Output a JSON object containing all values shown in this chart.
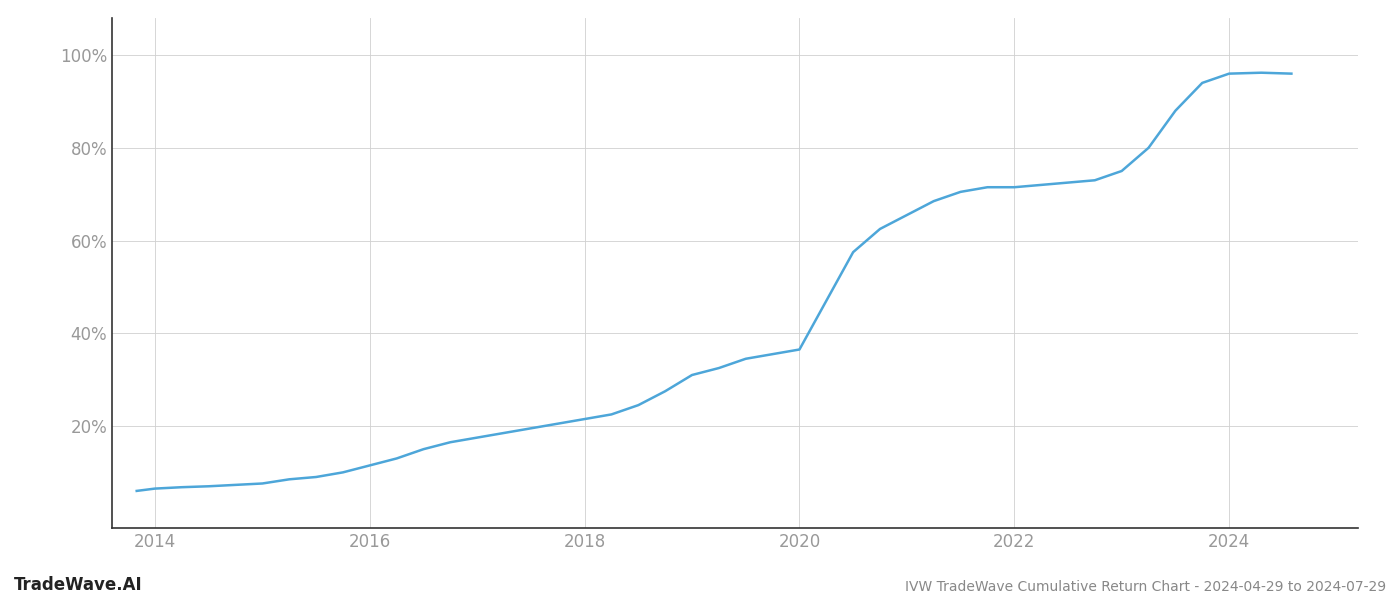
{
  "title": "IVW TradeWave Cumulative Return Chart - 2024-04-29 to 2024-07-29",
  "watermark": "TradeWave.AI",
  "line_color": "#4da6d9",
  "background_color": "#ffffff",
  "grid_color": "#d0d0d0",
  "x_years": [
    2013.83,
    2014.0,
    2014.25,
    2014.5,
    2014.75,
    2015.0,
    2015.25,
    2015.5,
    2015.75,
    2016.0,
    2016.25,
    2016.5,
    2016.75,
    2017.0,
    2017.25,
    2017.5,
    2017.75,
    2018.0,
    2018.25,
    2018.5,
    2018.75,
    2019.0,
    2019.25,
    2019.5,
    2019.75,
    2020.0,
    2020.25,
    2020.5,
    2020.75,
    2021.0,
    2021.25,
    2021.5,
    2021.75,
    2022.0,
    2022.25,
    2022.5,
    2022.75,
    2023.0,
    2023.25,
    2023.5,
    2023.75,
    2024.0,
    2024.3,
    2024.58
  ],
  "y_values": [
    0.06,
    0.065,
    0.068,
    0.07,
    0.073,
    0.076,
    0.085,
    0.09,
    0.1,
    0.115,
    0.13,
    0.15,
    0.165,
    0.175,
    0.185,
    0.195,
    0.205,
    0.215,
    0.225,
    0.245,
    0.275,
    0.31,
    0.325,
    0.345,
    0.355,
    0.365,
    0.47,
    0.575,
    0.625,
    0.655,
    0.685,
    0.705,
    0.715,
    0.715,
    0.72,
    0.725,
    0.73,
    0.75,
    0.8,
    0.88,
    0.94,
    0.96,
    0.962,
    0.96
  ],
  "xlim": [
    2013.6,
    2025.2
  ],
  "ylim": [
    -0.02,
    1.08
  ],
  "yticks": [
    0.2,
    0.4,
    0.6,
    0.8,
    1.0
  ],
  "ytick_labels": [
    "20%",
    "40%",
    "60%",
    "80%",
    "100%"
  ],
  "xticks": [
    2014,
    2016,
    2018,
    2020,
    2022,
    2024
  ],
  "xtick_labels": [
    "2014",
    "2016",
    "2018",
    "2020",
    "2022",
    "2024"
  ],
  "line_width": 1.8,
  "title_fontsize": 10,
  "tick_fontsize": 12,
  "watermark_fontsize": 12,
  "title_color": "#888888",
  "tick_color": "#999999",
  "spine_color": "#333333",
  "axis_color": "#555555"
}
